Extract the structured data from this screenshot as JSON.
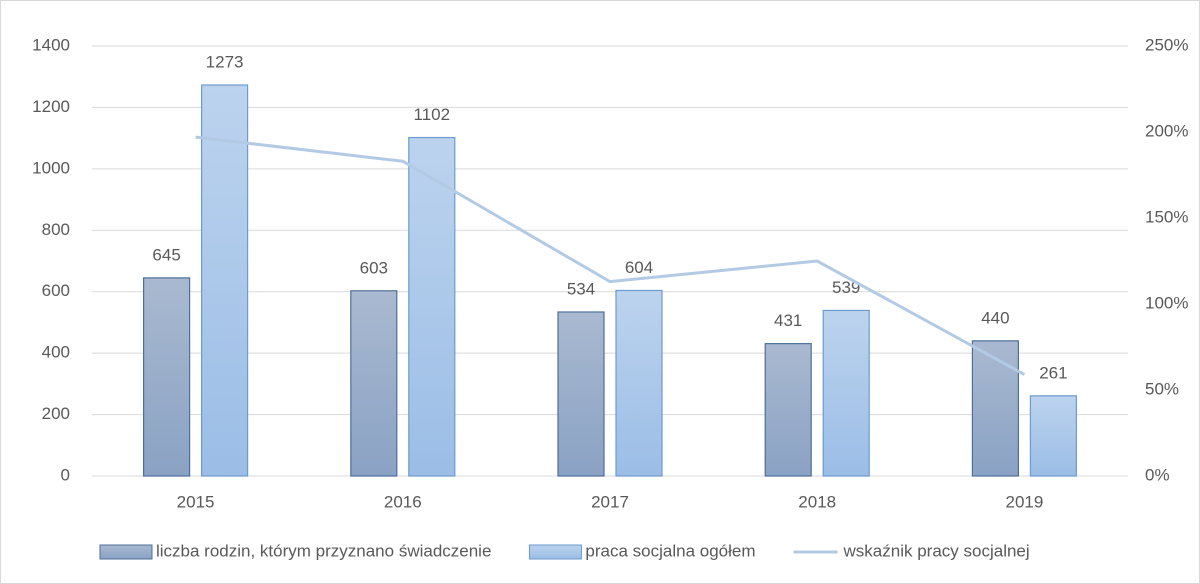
{
  "chart_data": {
    "type": "bar",
    "categories": [
      "2015",
      "2016",
      "2017",
      "2018",
      "2019"
    ],
    "series": [
      {
        "name": "liczba rodzin, którym przyznano świadczenie",
        "color": "#93a9c9",
        "values": [
          645,
          603,
          534,
          431,
          440
        ]
      },
      {
        "name": "praca socjalna ogółem",
        "color": "#a8c6ea",
        "values": [
          1273,
          1102,
          604,
          539,
          261
        ]
      },
      {
        "name": "wskaźnik pracy socjalnej",
        "type": "line",
        "axis": "y2",
        "color": "#b3cae5",
        "values": [
          197,
          183,
          113,
          125,
          59
        ]
      }
    ],
    "ylim": [
      0,
      1400
    ],
    "yticks": [
      0,
      200,
      400,
      600,
      800,
      1000,
      1200,
      1400
    ],
    "y2lim": [
      0,
      250
    ],
    "y2ticks": [
      {
        "value": 0,
        "label": "0%"
      },
      {
        "value": 50,
        "label": "50%"
      },
      {
        "value": 100,
        "label": "100%"
      },
      {
        "value": 150,
        "label": "150%"
      },
      {
        "value": 200,
        "label": "200%"
      },
      {
        "value": 250,
        "label": "250%"
      }
    ],
    "grid": true,
    "legend": "bottom"
  }
}
